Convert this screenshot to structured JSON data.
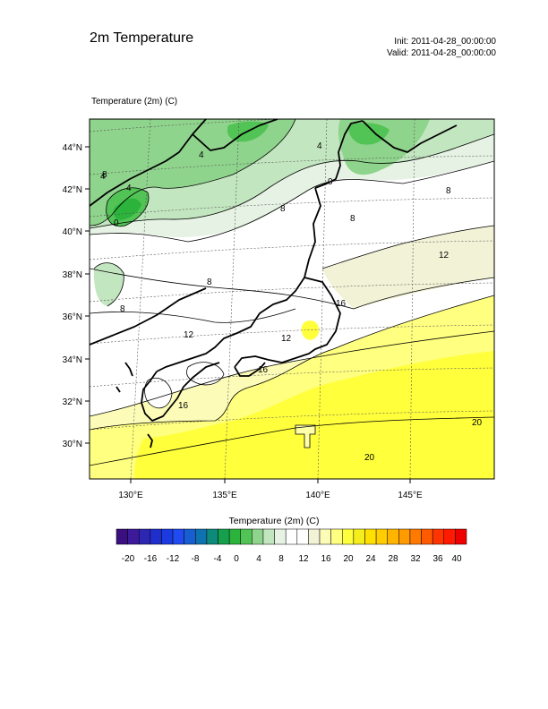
{
  "header": {
    "title": "2m Temperature",
    "init": "Init: 2011-04-28_00:00:00",
    "valid": "Valid: 2011-04-28_00:00:00"
  },
  "map": {
    "field_label": "Temperature (2m)   (C)",
    "lat_labels": [
      "44°N",
      "42°N",
      "40°N",
      "38°N",
      "36°N",
      "34°N",
      "32°N",
      "30°N"
    ],
    "lon_labels": [
      "130°E",
      "135°E",
      "140°E",
      "145°E"
    ],
    "contour_labels": [
      "4",
      "4",
      "8",
      "0",
      "4",
      "0",
      "4",
      "8",
      "8",
      "8",
      "12",
      "8",
      "8",
      "16",
      "16",
      "16",
      "12",
      "20",
      "20",
      "12"
    ]
  },
  "colorbar": {
    "title": "Temperature (2m)  (C)",
    "tick_labels": [
      "-20",
      "-16",
      "-12",
      "-8",
      "-4",
      "0",
      "4",
      "8",
      "12",
      "16",
      "20",
      "24",
      "28",
      "32",
      "36",
      "40"
    ],
    "colors": [
      "#3b0f80",
      "#3c1a99",
      "#2d26b3",
      "#1f2fcc",
      "#1b3be0",
      "#1f4bf0",
      "#175ed1",
      "#0f72b0",
      "#0e8a7a",
      "#16a04e",
      "#2bb33b",
      "#52c355",
      "#8fd48d",
      "#c2e6bf",
      "#e6f3e4",
      "#ffffff",
      "#ffffff",
      "#f2f2d6",
      "#fcfcb8",
      "#ffff80",
      "#ffff3c",
      "#f5ee1c",
      "#ffe000",
      "#ffcd00",
      "#ffb400",
      "#ff9a00",
      "#ff7a00",
      "#ff5a00",
      "#ff3400",
      "#ff1a00",
      "#ee0000"
    ]
  }
}
